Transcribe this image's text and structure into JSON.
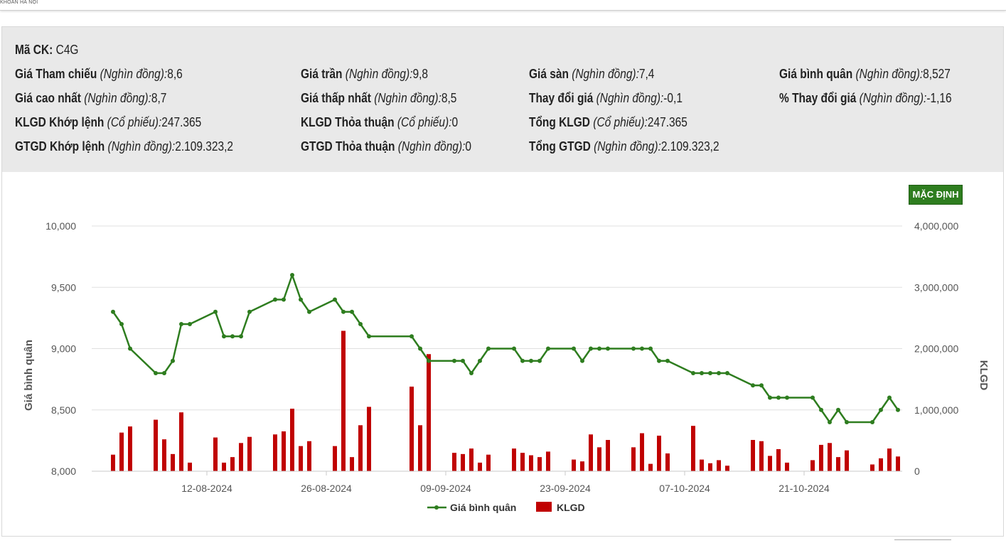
{
  "header": {
    "brand_text": "KHOÁN HÀ NỘI"
  },
  "info": {
    "ma_ck": {
      "label": "Mã CK:",
      "value": "C4G"
    },
    "rows": [
      [
        {
          "label": "Giá Tham chiếu",
          "unit": "(Nghìn đồng):",
          "value": "8,6"
        },
        {
          "label": "Giá trần",
          "unit": "(Nghìn đồng):",
          "value": "9,8"
        },
        {
          "label": "Giá sàn",
          "unit": "(Nghìn đồng):",
          "value": "7,4"
        },
        {
          "label": "Giá bình quân",
          "unit": "(Nghìn đồng):",
          "value": "8,527"
        }
      ],
      [
        {
          "label": "Giá cao nhất",
          "unit": "(Nghìn đồng):",
          "value": "8,7"
        },
        {
          "label": "Giá thấp nhất",
          "unit": "(Nghìn đồng):",
          "value": "8,5"
        },
        {
          "label": "Thay đổi giá",
          "unit": "(Nghìn đồng):",
          "value": "-0,1"
        },
        {
          "label": "% Thay đổi giá",
          "unit": "(Nghìn đồng):",
          "value": "-1,16"
        }
      ],
      [
        {
          "label": "KLGD Khớp lệnh",
          "unit": "(Cổ phiếu):",
          "value": "247.365"
        },
        {
          "label": "KLGD Thỏa thuận",
          "unit": "(Cổ phiếu):",
          "value": "0"
        },
        {
          "label": "Tổng KLGD",
          "unit": "(Cổ phiếu):",
          "value": "247.365"
        }
      ],
      [
        {
          "label": "GTGD Khớp lệnh",
          "unit": "(Nghìn đồng):",
          "value": "2.109.323,2"
        },
        {
          "label": "GTGD Thỏa thuận",
          "unit": "(Nghìn đồng):",
          "value": "0"
        },
        {
          "label": "Tổng GTGD",
          "unit": "(Nghìn đồng):",
          "value": "2.109.323,2"
        }
      ]
    ]
  },
  "default_button": {
    "label": "MẶC ĐỊNH"
  },
  "colors": {
    "line": "#2e7d1f",
    "bar": "#c00000",
    "grid": "#e0e0e0",
    "button": "#2e7d1f"
  },
  "chart_data": {
    "type": "bar",
    "ylabel_left": "Giá bình quân",
    "ylabel_right": "KLGD",
    "left_axis": {
      "ylim": [
        8000,
        10000
      ],
      "ticks": [
        "10,000",
        "9,500",
        "9,000",
        "8,500",
        "8,000"
      ]
    },
    "right_axis": {
      "ylim": [
        0,
        4000000
      ],
      "ticks": [
        "4,000,000",
        "3,000,000",
        "2,000,000",
        "1,000,000",
        "0"
      ]
    },
    "x_tick_labels": [
      "12-08-2024",
      "26-08-2024",
      "09-09-2024",
      "23-09-2024",
      "07-10-2024",
      "21-10-2024"
    ],
    "x_tick_dates": [
      "2024-08-12",
      "2024-08-26",
      "2024-09-09",
      "2024-09-23",
      "2024-10-07",
      "2024-10-21"
    ],
    "grid": true,
    "legend_position": "bottom",
    "series": [
      {
        "name": "Giá bình quân",
        "type": "line",
        "points": [
          [
            "2024-08-01",
            9300
          ],
          [
            "2024-08-02",
            9200
          ],
          [
            "2024-08-03",
            9000
          ],
          [
            "2024-08-06",
            8800
          ],
          [
            "2024-08-07",
            8800
          ],
          [
            "2024-08-08",
            8900
          ],
          [
            "2024-08-09",
            9200
          ],
          [
            "2024-08-10",
            9200
          ],
          [
            "2024-08-13",
            9300
          ],
          [
            "2024-08-14",
            9100
          ],
          [
            "2024-08-15",
            9100
          ],
          [
            "2024-08-16",
            9100
          ],
          [
            "2024-08-17",
            9300
          ],
          [
            "2024-08-20",
            9400
          ],
          [
            "2024-08-21",
            9400
          ],
          [
            "2024-08-22",
            9600
          ],
          [
            "2024-08-23",
            9400
          ],
          [
            "2024-08-24",
            9300
          ],
          [
            "2024-08-27",
            9400
          ],
          [
            "2024-08-28",
            9300
          ],
          [
            "2024-08-29",
            9300
          ],
          [
            "2024-08-30",
            9200
          ],
          [
            "2024-08-31",
            9100
          ],
          [
            "2024-09-05",
            9100
          ],
          [
            "2024-09-06",
            9000
          ],
          [
            "2024-09-07",
            8900
          ],
          [
            "2024-09-10",
            8900
          ],
          [
            "2024-09-11",
            8900
          ],
          [
            "2024-09-12",
            8800
          ],
          [
            "2024-09-13",
            8900
          ],
          [
            "2024-09-14",
            9000
          ],
          [
            "2024-09-17",
            9000
          ],
          [
            "2024-09-18",
            8900
          ],
          [
            "2024-09-19",
            8900
          ],
          [
            "2024-09-20",
            8900
          ],
          [
            "2024-09-21",
            9000
          ],
          [
            "2024-09-24",
            9000
          ],
          [
            "2024-09-25",
            8900
          ],
          [
            "2024-09-26",
            9000
          ],
          [
            "2024-09-27",
            9000
          ],
          [
            "2024-09-28",
            9000
          ],
          [
            "2024-10-01",
            9000
          ],
          [
            "2024-10-02",
            9000
          ],
          [
            "2024-10-03",
            9000
          ],
          [
            "2024-10-04",
            8900
          ],
          [
            "2024-10-05",
            8900
          ],
          [
            "2024-10-08",
            8800
          ],
          [
            "2024-10-09",
            8800
          ],
          [
            "2024-10-10",
            8800
          ],
          [
            "2024-10-11",
            8800
          ],
          [
            "2024-10-12",
            8800
          ],
          [
            "2024-10-15",
            8700
          ],
          [
            "2024-10-16",
            8700
          ],
          [
            "2024-10-17",
            8600
          ],
          [
            "2024-10-18",
            8600
          ],
          [
            "2024-10-19",
            8600
          ],
          [
            "2024-10-22",
            8600
          ],
          [
            "2024-10-23",
            8500
          ],
          [
            "2024-10-24",
            8400
          ],
          [
            "2024-10-25",
            8500
          ],
          [
            "2024-10-26",
            8400
          ],
          [
            "2024-10-29",
            8400
          ],
          [
            "2024-10-30",
            8500
          ],
          [
            "2024-10-31",
            8600
          ],
          [
            "2024-11-01",
            8500
          ]
        ]
      },
      {
        "name": "KLGD",
        "type": "bar",
        "points": [
          [
            "2024-08-01",
            270000
          ],
          [
            "2024-08-02",
            630000
          ],
          [
            "2024-08-03",
            730000
          ],
          [
            "2024-08-06",
            840000
          ],
          [
            "2024-08-07",
            520000
          ],
          [
            "2024-08-08",
            280000
          ],
          [
            "2024-08-09",
            960000
          ],
          [
            "2024-08-10",
            140000
          ],
          [
            "2024-08-13",
            550000
          ],
          [
            "2024-08-14",
            140000
          ],
          [
            "2024-08-15",
            230000
          ],
          [
            "2024-08-16",
            460000
          ],
          [
            "2024-08-17",
            560000
          ],
          [
            "2024-08-20",
            600000
          ],
          [
            "2024-08-21",
            650000
          ],
          [
            "2024-08-22",
            1020000
          ],
          [
            "2024-08-23",
            410000
          ],
          [
            "2024-08-24",
            490000
          ],
          [
            "2024-08-27",
            410000
          ],
          [
            "2024-08-28",
            2290000
          ],
          [
            "2024-08-29",
            230000
          ],
          [
            "2024-08-30",
            750000
          ],
          [
            "2024-08-31",
            1050000
          ],
          [
            "2024-09-05",
            1380000
          ],
          [
            "2024-09-06",
            750000
          ],
          [
            "2024-09-07",
            1910000
          ],
          [
            "2024-09-10",
            300000
          ],
          [
            "2024-09-11",
            280000
          ],
          [
            "2024-09-12",
            370000
          ],
          [
            "2024-09-13",
            140000
          ],
          [
            "2024-09-14",
            270000
          ],
          [
            "2024-09-17",
            370000
          ],
          [
            "2024-09-18",
            300000
          ],
          [
            "2024-09-19",
            260000
          ],
          [
            "2024-09-20",
            230000
          ],
          [
            "2024-09-21",
            320000
          ],
          [
            "2024-09-24",
            190000
          ],
          [
            "2024-09-25",
            160000
          ],
          [
            "2024-09-26",
            600000
          ],
          [
            "2024-09-27",
            390000
          ],
          [
            "2024-09-28",
            510000
          ],
          [
            "2024-10-01",
            390000
          ],
          [
            "2024-10-02",
            620000
          ],
          [
            "2024-10-03",
            120000
          ],
          [
            "2024-10-04",
            580000
          ],
          [
            "2024-10-05",
            290000
          ],
          [
            "2024-10-08",
            740000
          ],
          [
            "2024-10-09",
            190000
          ],
          [
            "2024-10-10",
            130000
          ],
          [
            "2024-10-11",
            180000
          ],
          [
            "2024-10-12",
            90000
          ],
          [
            "2024-10-15",
            510000
          ],
          [
            "2024-10-16",
            490000
          ],
          [
            "2024-10-17",
            250000
          ],
          [
            "2024-10-18",
            360000
          ],
          [
            "2024-10-19",
            140000
          ],
          [
            "2024-10-22",
            180000
          ],
          [
            "2024-10-23",
            430000
          ],
          [
            "2024-10-24",
            460000
          ],
          [
            "2024-10-25",
            230000
          ],
          [
            "2024-10-26",
            340000
          ],
          [
            "2024-10-29",
            110000
          ],
          [
            "2024-10-30",
            210000
          ],
          [
            "2024-10-31",
            370000
          ],
          [
            "2024-11-01",
            240000
          ]
        ]
      }
    ]
  }
}
